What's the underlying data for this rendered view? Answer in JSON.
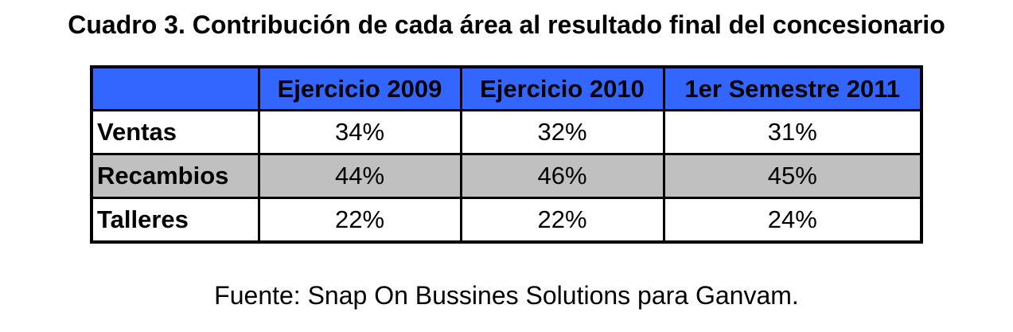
{
  "title": "Cuadro 3. Contribución de cada área al resultado final del concesionario",
  "table": {
    "columns": [
      "",
      "Ejercicio 2009",
      "Ejercicio 2010",
      "1er Semestre 2011"
    ],
    "rows": [
      {
        "label": "Ventas",
        "values": [
          "34%",
          "32%",
          "31%"
        ],
        "shaded": false
      },
      {
        "label": "Recambios",
        "values": [
          "44%",
          "46%",
          "45%"
        ],
        "shaded": true
      },
      {
        "label": "Talleres",
        "values": [
          "22%",
          "22%",
          "24%"
        ],
        "shaded": false
      }
    ],
    "colors": {
      "header_bg": "#3366FF",
      "shaded_row_bg": "#C0C0C0",
      "border": "#000000",
      "text": "#000000",
      "page_bg": "#FFFFFF"
    }
  },
  "source": "Fuente: Snap On Bussines Solutions para Ganvam.",
  "chart_data": {
    "type": "table",
    "title": "Cuadro 3. Contribución de cada área al resultado final del concesionario",
    "categories": [
      "Ejercicio 2009",
      "Ejercicio 2010",
      "1er Semestre 2011"
    ],
    "series": [
      {
        "name": "Ventas",
        "values": [
          34,
          32,
          31
        ]
      },
      {
        "name": "Recambios",
        "values": [
          44,
          46,
          45
        ]
      },
      {
        "name": "Talleres",
        "values": [
          22,
          22,
          24
        ]
      }
    ],
    "unit": "%",
    "source": "Fuente: Snap On Bussines Solutions para Ganvam."
  }
}
